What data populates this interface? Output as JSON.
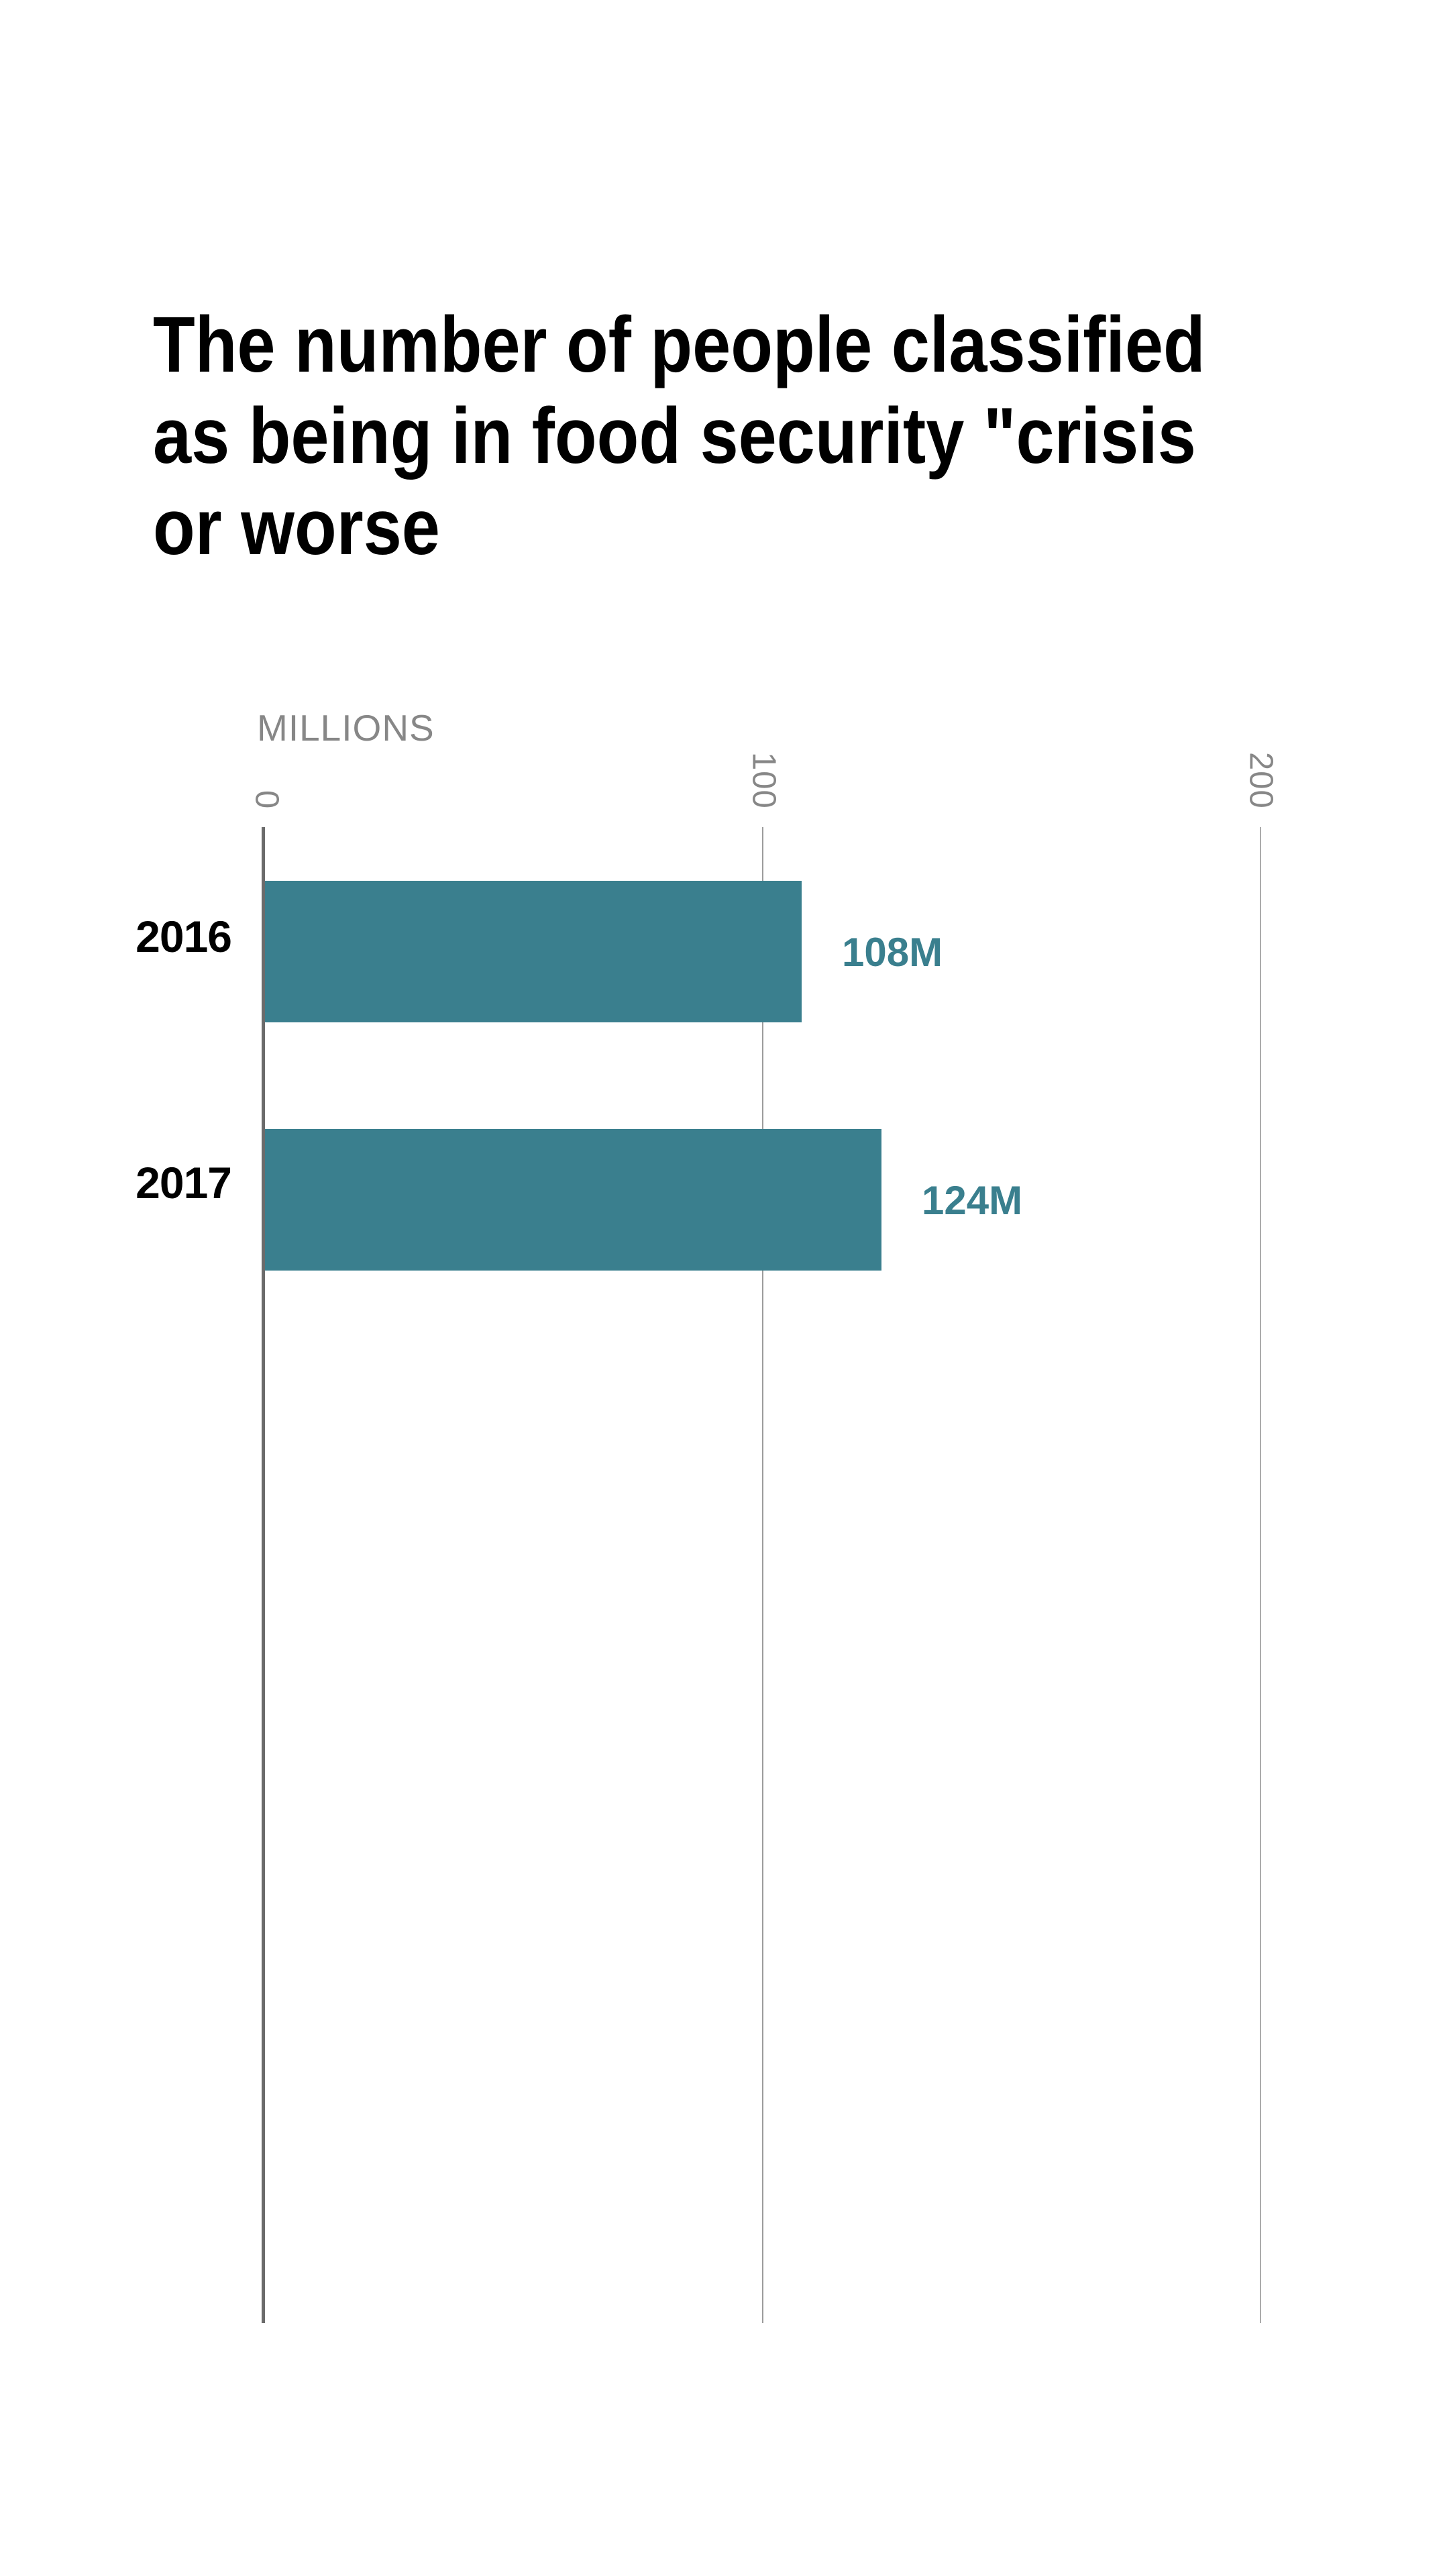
{
  "chart_data": {
    "type": "bar",
    "orientation": "horizontal",
    "title": "The number of people classified as being in food security \"crisis or worse",
    "title_lines": [
      "The number of people classified",
      "as being in food security \"crisis",
      "or worse"
    ],
    "unit_label": "MILLIONS",
    "categories": [
      "2016",
      "2017"
    ],
    "values": [
      108,
      124
    ],
    "value_labels": [
      "108M",
      "124M"
    ],
    "xlim": [
      0,
      200
    ],
    "x_ticks": [
      0,
      100,
      200
    ],
    "x_tick_labels": [
      "0",
      "100",
      "200"
    ],
    "grid": true,
    "legend": "none",
    "colors": {
      "bar": "#3A7F8E",
      "value_label": "#3A7F8E",
      "title": "#000000",
      "category_label": "#000000",
      "axis_line": "#6B6B6B",
      "gridline": "#9C9C9C",
      "tick_text": "#878787",
      "background": "#FFFFFF"
    }
  }
}
